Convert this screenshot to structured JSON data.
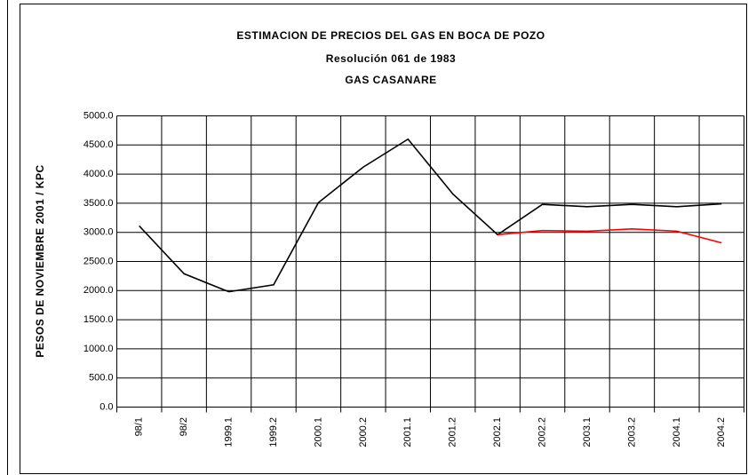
{
  "chart_data": {
    "type": "line",
    "title": "ESTIMACION DE PRECIOS DEL GAS EN BOCA DE POZO",
    "subtitle": "Resolución 061 de 1983",
    "subtitle2": "GAS CASANARE",
    "y_label": "PESOS DE NOVIEMBRE 2001 / KPC",
    "categories": [
      "98/1",
      "98/2",
      "1999.1",
      "1999.2",
      "2000.1",
      "2000.2",
      "2001.1",
      "2001.2",
      "2002.1",
      "2002.2",
      "2003.1",
      "2003.2",
      "2004.1",
      "2004.2"
    ],
    "series": [
      {
        "color": "#000000",
        "values": [
          3110,
          2290,
          1980,
          2100,
          3510,
          4120,
          4600,
          3660,
          2960,
          3480,
          3440,
          3480,
          3440,
          3490
        ]
      },
      {
        "color": "#ff0000",
        "values": [
          null,
          null,
          null,
          null,
          null,
          null,
          null,
          null,
          2960,
          3030,
          3020,
          3060,
          3020,
          2820
        ]
      }
    ],
    "ylim": [
      0,
      5000
    ],
    "yticks": [
      {
        "value": 0,
        "label": "0.0"
      },
      {
        "value": 500,
        "label": "500.0"
      },
      {
        "value": 1000,
        "label": "1000.0"
      },
      {
        "value": 1500,
        "label": "1500.0"
      },
      {
        "value": 2000,
        "label": "2000.0"
      },
      {
        "value": 2500,
        "label": "2500.0"
      },
      {
        "value": 3000,
        "label": "3000.0"
      },
      {
        "value": 3500,
        "label": "3500.0"
      },
      {
        "value": 4000,
        "label": "4000.0"
      },
      {
        "value": 4500,
        "label": "4500.0"
      },
      {
        "value": 5000,
        "label": "5000.0"
      }
    ],
    "grid": true
  }
}
